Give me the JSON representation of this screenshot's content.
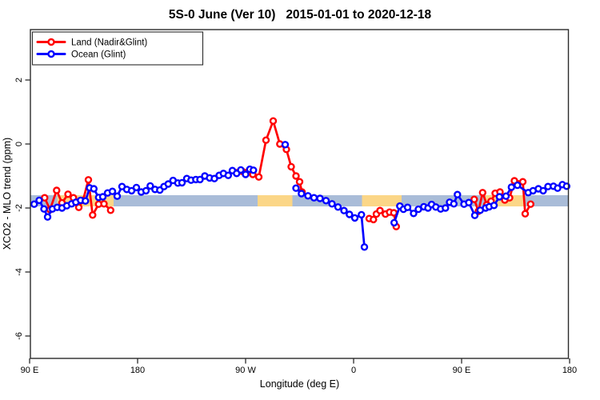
{
  "title": "5S-0 June (Ver 10)   2015-01-01 to 2020-12-18",
  "chart_data": {
    "type": "line",
    "title": "5S-0 June (Ver 10)   2015-01-01 to 2020-12-18",
    "xlabel": "Longitude (deg E)",
    "ylabel": "XCO2 - MLO trend (ppm)",
    "xlim": [
      90,
      540
    ],
    "ylim": [
      -6.7,
      3.575
    ],
    "grid": false,
    "x_ticks": {
      "values": [
        90,
        180,
        270,
        360,
        450,
        540
      ],
      "labels": [
        "90 E",
        "180",
        "90 W",
        "0",
        "90 E",
        "180"
      ]
    },
    "y_ticks": {
      "values": [
        2,
        0,
        -2,
        -4,
        -6
      ],
      "labels": [
        "2",
        "0",
        "-2",
        "-4",
        "-6"
      ]
    },
    "legend": {
      "position": "top-left",
      "entries": [
        {
          "label": "Land (Nadir&Glint)",
          "color": "#ff0000"
        },
        {
          "label": "Ocean (Glint)",
          "color": "#0000ff"
        }
      ]
    },
    "band": {
      "value_from": -1.95,
      "value_to": -1.6,
      "ocean_color": "#a9bcd8",
      "land_color": "#fbd687",
      "land_segments_x": [
        [
          113,
          160
        ],
        [
          280,
          309
        ],
        [
          367,
          400
        ],
        [
          470,
          503
        ]
      ]
    },
    "series": [
      {
        "name": "Land (Nadir&Glint)",
        "color": "#ff0000",
        "segments": [
          [
            [
              102.5,
              -1.68
            ],
            [
              107,
              -2.05
            ],
            [
              112.5,
              -1.45
            ],
            [
              117,
              -1.84
            ],
            [
              122,
              -1.57
            ],
            [
              126.5,
              -1.68
            ],
            [
              131,
              -1.98
            ],
            [
              134.5,
              -1.76
            ],
            [
              139,
              -1.12
            ],
            [
              142.5,
              -2.22
            ],
            [
              147.5,
              -1.88
            ],
            [
              152,
              -1.87
            ],
            [
              157.5,
              -2.07
            ]
          ],
          [
            [
              262.5,
              -0.9
            ],
            [
              267,
              -0.85
            ],
            [
              271.5,
              -0.88
            ],
            [
              276,
              -0.95
            ],
            [
              281,
              -1.03
            ],
            [
              287,
              0.12
            ],
            [
              293,
              0.72
            ],
            [
              298.5,
              0.0
            ],
            [
              304,
              -0.17
            ],
            [
              308,
              -0.71
            ],
            [
              312,
              -1.0
            ],
            [
              315,
              -1.18
            ],
            [
              317,
              -1.5
            ]
          ],
          [
            [
              373,
              -2.33
            ],
            [
              376.5,
              -2.36
            ],
            [
              379,
              -2.19
            ],
            [
              382,
              -2.08
            ],
            [
              386.5,
              -2.19
            ],
            [
              390,
              -2.13
            ],
            [
              393.5,
              -2.15
            ],
            [
              395.5,
              -2.58
            ]
          ],
          [
            [
              460.5,
              -1.73
            ],
            [
              464,
              -2.1
            ],
            [
              467.5,
              -1.52
            ],
            [
              471,
              -1.9
            ],
            [
              474.5,
              -1.79
            ],
            [
              478,
              -1.54
            ],
            [
              482,
              -1.5
            ],
            [
              486,
              -1.75
            ],
            [
              490,
              -1.68
            ],
            [
              494,
              -1.15
            ],
            [
              501,
              -1.18
            ],
            [
              503,
              -2.18
            ],
            [
              507.5,
              -1.88
            ]
          ]
        ]
      },
      {
        "name": "Ocean (Glint)",
        "color": "#0000ff",
        "segments": [
          [
            [
              93.8,
              -1.88
            ],
            [
              98,
              -1.76
            ],
            [
              102,
              -2.03
            ],
            [
              105,
              -2.28
            ],
            [
              109,
              -2.03
            ],
            [
              113,
              -1.98
            ],
            [
              117,
              -2.0
            ],
            [
              121,
              -1.93
            ],
            [
              125,
              -1.87
            ],
            [
              128.5,
              -1.82
            ],
            [
              132.5,
              -1.76
            ],
            [
              136.5,
              -1.78
            ],
            [
              140,
              -1.37
            ],
            [
              143.5,
              -1.4
            ],
            [
              147.5,
              -1.67
            ],
            [
              151,
              -1.65
            ],
            [
              155,
              -1.53
            ],
            [
              159,
              -1.48
            ],
            [
              163,
              -1.63
            ],
            [
              167,
              -1.33
            ],
            [
              171,
              -1.42
            ],
            [
              175,
              -1.46
            ],
            [
              179,
              -1.36
            ],
            [
              183,
              -1.5
            ],
            [
              187,
              -1.46
            ],
            [
              190.5,
              -1.31
            ],
            [
              194.5,
              -1.42
            ],
            [
              198.5,
              -1.44
            ],
            [
              202,
              -1.33
            ],
            [
              205.5,
              -1.25
            ],
            [
              209.5,
              -1.14
            ],
            [
              213.5,
              -1.22
            ],
            [
              217,
              -1.21
            ],
            [
              221,
              -1.08
            ],
            [
              224.5,
              -1.13
            ],
            [
              228.5,
              -1.11
            ],
            [
              232,
              -1.11
            ],
            [
              236,
              -1.0
            ],
            [
              240,
              -1.06
            ],
            [
              244,
              -1.08
            ],
            [
              248,
              -0.98
            ],
            [
              251.5,
              -0.92
            ],
            [
              255.5,
              -0.98
            ],
            [
              259,
              -0.83
            ],
            [
              262.5,
              -0.92
            ],
            [
              266,
              -0.81
            ],
            [
              270,
              -0.95
            ],
            [
              273.5,
              -0.79
            ],
            [
              276.5,
              -0.82
            ]
          ],
          [
            [
              303,
              -0.02
            ]
          ],
          [
            [
              312,
              -1.38
            ],
            [
              316.5,
              -1.55
            ],
            [
              322,
              -1.62
            ],
            [
              327,
              -1.68
            ],
            [
              332,
              -1.7
            ],
            [
              337,
              -1.77
            ],
            [
              342,
              -1.87
            ],
            [
              347,
              -1.97
            ],
            [
              352,
              -2.08
            ],
            [
              356.5,
              -2.2
            ],
            [
              361,
              -2.31
            ],
            [
              366.5,
              -2.21
            ],
            [
              369,
              -3.22
            ]
          ],
          [
            [
              393.8,
              -2.46
            ],
            [
              398.5,
              -1.94
            ],
            [
              401.5,
              -2.04
            ],
            [
              405,
              -1.98
            ],
            [
              410,
              -2.17
            ],
            [
              414,
              -2.04
            ],
            [
              418.5,
              -1.96
            ],
            [
              422,
              -2.0
            ],
            [
              425,
              -1.89
            ],
            [
              428.5,
              -1.97
            ],
            [
              432.5,
              -2.03
            ],
            [
              436.5,
              -2.0
            ],
            [
              440,
              -1.82
            ],
            [
              443.5,
              -1.87
            ],
            [
              446.5,
              -1.58
            ],
            [
              452,
              -1.88
            ],
            [
              456,
              -1.83
            ],
            [
              461,
              -2.23
            ],
            [
              465.5,
              -2.07
            ],
            [
              470,
              -2.0
            ],
            [
              473,
              -1.96
            ],
            [
              477,
              -1.92
            ],
            [
              481.5,
              -1.65
            ],
            [
              487,
              -1.63
            ],
            [
              491.5,
              -1.35
            ],
            [
              496.5,
              -1.29
            ],
            [
              505.5,
              -1.52
            ],
            [
              509.5,
              -1.46
            ],
            [
              514,
              -1.4
            ],
            [
              518,
              -1.46
            ],
            [
              522,
              -1.33
            ],
            [
              526.5,
              -1.32
            ],
            [
              530,
              -1.38
            ],
            [
              534,
              -1.27
            ],
            [
              537.5,
              -1.32
            ]
          ]
        ]
      }
    ]
  }
}
